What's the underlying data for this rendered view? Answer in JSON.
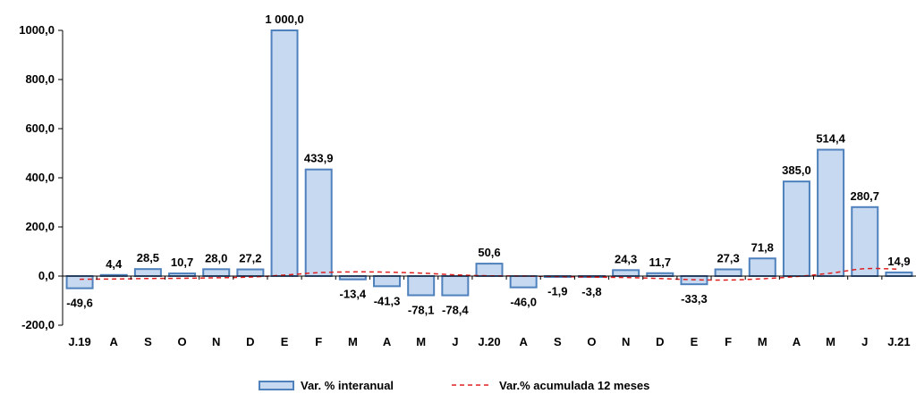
{
  "chart_data": {
    "type": "bar",
    "categories": [
      "J.19",
      "A",
      "S",
      "O",
      "N",
      "D",
      "E",
      "F",
      "M",
      "A",
      "M",
      "J",
      "J.20",
      "A",
      "S",
      "O",
      "N",
      "D",
      "E",
      "F",
      "M",
      "A",
      "M",
      "J",
      "J.21"
    ],
    "series": [
      {
        "name": "Var. % interanual",
        "type": "bar",
        "values": [
          -49.6,
          4.4,
          28.5,
          10.7,
          28.0,
          27.2,
          1000.0,
          433.9,
          -13.4,
          -41.3,
          -78.1,
          -78.4,
          50.6,
          -46.0,
          -1.9,
          -3.8,
          24.3,
          11.7,
          -33.3,
          27.3,
          71.8,
          385.0,
          514.4,
          280.7,
          14.9
        ],
        "labels": [
          "-49,6",
          "4,4",
          "28,5",
          "10,7",
          "28,0",
          "27,2",
          "1 000,0",
          "433,9",
          "-13,4",
          "-41,3",
          "-78,1",
          "-78,4",
          "50,6",
          "-46,0",
          "-1,9",
          "-3,8",
          "24,3",
          "11,7",
          "-33,3",
          "27,3",
          "71,8",
          "385,0",
          "514,4",
          "280,7",
          "14,9"
        ]
      },
      {
        "name": "Var.% acumulada 12 meses",
        "type": "line",
        "values": [
          -13,
          -12,
          -10,
          -9,
          -7,
          -4,
          4,
          14,
          17,
          16,
          12,
          5,
          1,
          0,
          -2,
          -4,
          -6,
          -10,
          -15,
          -16,
          -11,
          -2,
          12,
          30,
          28
        ]
      }
    ],
    "ylim": [
      -200,
      1000
    ],
    "yticks": [
      -200,
      0,
      200,
      400,
      600,
      800,
      1000
    ],
    "ytick_labels": [
      "-200,0",
      "0,0",
      "200,0",
      "400,0",
      "600,0",
      "800,0",
      "1000,0"
    ],
    "grid": false,
    "legend_position": "bottom",
    "colors": {
      "bar_fill": "#c6d9f1",
      "bar_stroke": "#4f81bd",
      "line": "#e02020",
      "axis": "#000000"
    }
  }
}
